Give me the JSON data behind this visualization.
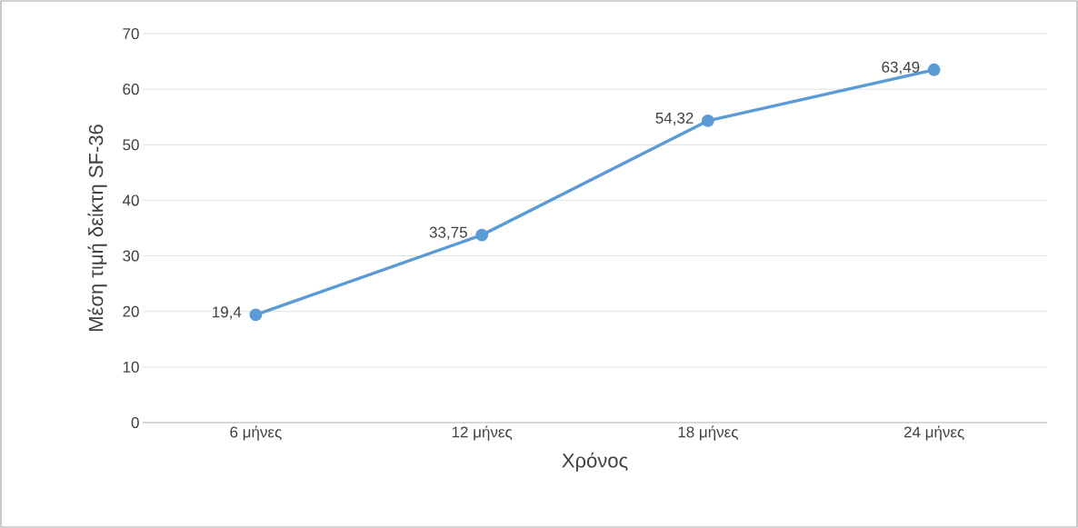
{
  "chart_data": {
    "type": "line",
    "xlabel": "Χρόνος",
    "ylabel": "Μέση τιμή δείκτη SF-36",
    "categories": [
      "6 μήνες",
      "12 μήνες",
      "18 μήνες",
      "24 μήνες"
    ],
    "values": [
      19.4,
      33.75,
      54.32,
      63.49
    ],
    "value_labels": [
      "19,4",
      "33,75",
      "54,32",
      "63,49"
    ],
    "color": "#5b9bd5",
    "marker": "circle",
    "line_style": "solid",
    "ylim": [
      0,
      70
    ],
    "yticks": [
      0,
      10,
      20,
      30,
      40,
      50,
      60,
      70
    ],
    "grid": "y"
  }
}
